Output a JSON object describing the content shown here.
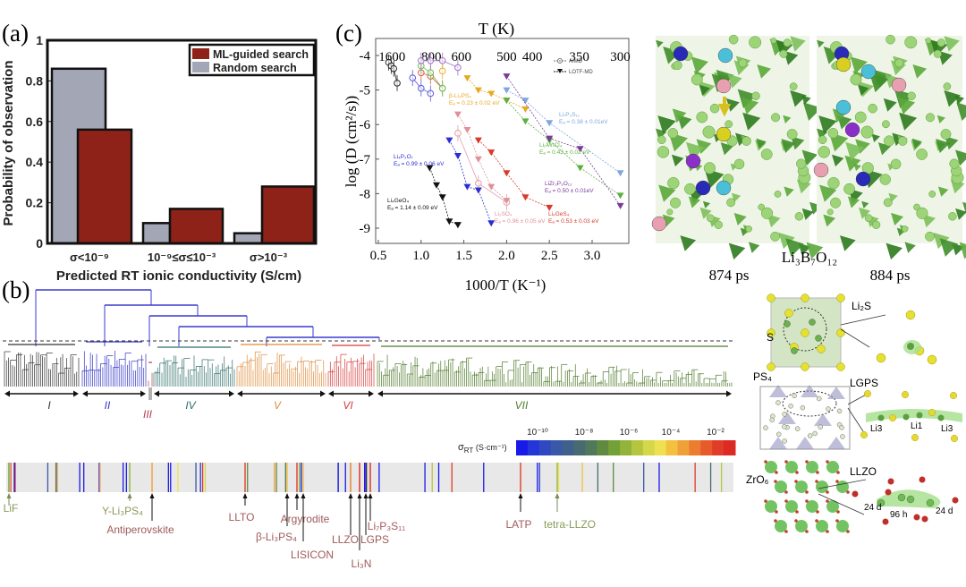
{
  "panels": {
    "a": "(a)",
    "b": "(b)",
    "c": "(c)"
  },
  "chart_data": [
    {
      "type": "bar",
      "panel": "a",
      "categories": [
        "σ<10⁻⁹",
        "10⁻⁹≤σ≤10⁻³",
        "σ>10⁻³"
      ],
      "series": [
        {
          "name": "Random search",
          "values": [
            0.86,
            0.1,
            0.05
          ],
          "color": "#a3a6b4"
        },
        {
          "name": "ML-guided search",
          "values": [
            0.56,
            0.17,
            0.28
          ],
          "color": "#8e2218"
        }
      ],
      "xlabel": "Predicted RT ionic conductivity (S/cm)",
      "ylabel": "Probability of observation",
      "ylim": [
        0,
        1
      ],
      "yticks": [
        "0",
        "0.2",
        "0.4",
        "0.6",
        "0.8",
        "1"
      ],
      "legend_position": "top-right",
      "legend": [
        "ML-guided search",
        "Random search"
      ]
    },
    {
      "type": "scatter",
      "panel": "c",
      "xlabel": "1000/T (K⁻¹)",
      "ylabel": "log (D (cm²/s))",
      "top_axis_label": "T (K)",
      "xlim": [
        0.4,
        3.45
      ],
      "ylim": [
        -9.45,
        -3.5
      ],
      "xticks": [
        "0.5",
        "1.0",
        "1.5",
        "2.0",
        "2.5",
        "3.0"
      ],
      "yticks": [
        "-4",
        "-5",
        "-6",
        "-7",
        "-8",
        "-9"
      ],
      "top_ticks": [
        {
          "label": "1600",
          "x": 0.66
        },
        {
          "label": "800",
          "x": 1.12
        },
        {
          "label": "600",
          "x": 1.47
        },
        {
          "label": "500",
          "x": 2.0
        },
        {
          "label": "400",
          "x": 2.3
        },
        {
          "label": "350",
          "x": 2.85
        },
        {
          "label": "300",
          "x": 3.33
        }
      ],
      "legend": [
        {
          "label": "AIMD",
          "marker": "circle"
        },
        {
          "label": "LOTF-MD",
          "marker": "triangle"
        }
      ],
      "legend_position": "top-right",
      "lotf_series": [
        {
          "name": "Li₄GeO₄",
          "ea": "Eₐ = 1.14 ± 0.09 eV",
          "color": "#111111",
          "x": [
            1.1,
            1.18,
            1.25,
            1.33,
            1.43
          ],
          "y": [
            -7.25,
            -7.75,
            -8.1,
            -8.8,
            -8.9
          ]
        },
        {
          "name": "Li₄P₂O₇",
          "ea": "Eₐ = 0.99 ± 0.06 eV",
          "color": "#2b2fd0",
          "x": [
            1.33,
            1.43,
            1.54,
            1.67,
            1.82
          ],
          "y": [
            -6.45,
            -6.9,
            -7.8,
            -7.9,
            -8.85
          ]
        },
        {
          "name": "Li₂SO₄",
          "ea": "Eₐ = 0.96 ± 0.05 eV",
          "color": "#e0909a",
          "x": [
            1.43,
            1.54,
            1.67,
            1.82,
            2.0
          ],
          "y": [
            -5.7,
            -6.15,
            -7.0,
            -7.8,
            -8.2
          ]
        },
        {
          "name": "Li₄GeS₄",
          "ea": "Eₐ = 0.53 ± 0.03 eV",
          "color": "#d83a2a",
          "x": [
            1.67,
            1.82,
            2.0,
            2.22,
            2.5
          ],
          "y": [
            -6.45,
            -6.8,
            -7.4,
            -8.1,
            -8.4
          ]
        },
        {
          "name": "β-Li₃PS₄",
          "ea": "Eₐ = 0.23 ± 0.02 eV",
          "color": "#e8a820",
          "x": [
            1.54,
            1.67,
            1.82,
            2.0,
            2.22
          ],
          "y": [
            -4.65,
            -5.0,
            -5.1,
            -5.3,
            -5.55
          ]
        },
        {
          "name": "Li₇P₃S₁₁",
          "ea": "Eₐ = 0.38 ± 0.01eV",
          "color": "#7ea6e0",
          "x": [
            2.0,
            2.22,
            2.5,
            3.33
          ],
          "y": [
            -5.0,
            -5.3,
            -5.95,
            -7.4
          ]
        },
        {
          "name": "Li₂MnCl₄",
          "ea": "Eₐ = 0.43 ± 0.02 eV",
          "color": "#5cb040",
          "x": [
            2.0,
            2.22,
            2.5,
            2.86,
            3.33
          ],
          "y": [
            -5.3,
            -5.9,
            -6.45,
            -7.25,
            -8.05
          ]
        },
        {
          "name": "LiZr₂P₃O₁₂",
          "ea": "Eₐ = 0.50 ± 0.01eV",
          "color": "#7a3a9a",
          "x": [
            2.0,
            2.5,
            2.86,
            3.33
          ],
          "y": [
            -4.6,
            -6.4,
            -6.7,
            -8.35
          ]
        }
      ],
      "aimd_series": [
        {
          "color": "#222222",
          "x": [
            0.62,
            0.65,
            0.68,
            0.72
          ],
          "y": [
            -4.2,
            -4.3,
            -4.38,
            -4.8
          ]
        },
        {
          "color": "#5a5ad8",
          "x": [
            0.9,
            1.0,
            1.11
          ],
          "y": [
            -4.65,
            -4.95,
            -5.1
          ]
        },
        {
          "color": "#d85a4a",
          "x": [
            1.0,
            1.11,
            1.25
          ],
          "y": [
            -4.5,
            -4.6,
            -4.95
          ]
        },
        {
          "color": "#6cc050",
          "x": [
            1.0,
            1.11,
            1.25
          ],
          "y": [
            -4.3,
            -4.5,
            -4.95
          ]
        },
        {
          "color": "#a070c8",
          "x": [
            1.0,
            1.11,
            1.25,
            1.43
          ],
          "y": [
            -4.15,
            -4.15,
            -4.15,
            -4.35
          ]
        },
        {
          "color": "#e8b030",
          "x": [
            1.25
          ],
          "y": [
            -4.45
          ]
        },
        {
          "color": "#e0a0a8",
          "x": [
            1.43,
            1.67,
            2.0
          ],
          "y": [
            -6.25,
            -7.7,
            -8.25
          ]
        }
      ]
    }
  ],
  "snapshots": {
    "compound": "Li₃B₇O₁₂",
    "times": [
      "874 ps",
      "884 ps"
    ]
  },
  "dendrogram": {
    "clusters": [
      {
        "label": "I",
        "color": "#333333"
      },
      {
        "label": "II",
        "color": "#3434c8"
      },
      {
        "label": "III",
        "color": "#b04050"
      },
      {
        "label": "IV",
        "color": "#2e6e6a"
      },
      {
        "label": "V",
        "color": "#e08a3a"
      },
      {
        "label": "VI",
        "color": "#d83a3a"
      },
      {
        "label": "VII",
        "color": "#4f7a2a"
      }
    ],
    "link_color": "#3a3ad0"
  },
  "colorbar": {
    "label": "σ",
    "label_sub": "RT",
    "label_unit": " (S·cm⁻¹)",
    "ticks": [
      "10⁻¹⁰",
      "10⁻⁸",
      "10⁻⁶",
      "10⁻⁴",
      "10⁻²"
    ],
    "colors": [
      "#1a1ae8",
      "#2436d8",
      "#3048c0",
      "#3a58a8",
      "#40608c",
      "#486a70",
      "#50785a",
      "#5f8a40",
      "#74a038",
      "#92b43a",
      "#b4c640",
      "#d4d848",
      "#eee050",
      "#f4c040",
      "#f0a038",
      "#ec7c30",
      "#e65a2c",
      "#e03c28",
      "#dc2a24"
    ]
  },
  "materials": [
    {
      "name": "LiF",
      "color": "#8a9a5a"
    },
    {
      "name": "Y-Li₃PS₄",
      "color": "#8a9a5a"
    },
    {
      "name": "Antiperovskite",
      "color": "#a05a5a"
    },
    {
      "name": "LLTO",
      "color": "#a05a5a"
    },
    {
      "name": "β-Li₃PS₄",
      "color": "#a05a5a"
    },
    {
      "name": "Argyrodite",
      "color": "#a05a5a"
    },
    {
      "name": "LISICON",
      "color": "#a05a5a"
    },
    {
      "name": "LLZO",
      "color": "#a05a5a"
    },
    {
      "name": "Li₃N",
      "color": "#a05a5a"
    },
    {
      "name": "LGPS",
      "color": "#a05a5a"
    },
    {
      "name": "Li₇P₃S₁₁",
      "color": "#a05a5a"
    },
    {
      "name": "LATP",
      "color": "#a05a5a"
    },
    {
      "name": "tetra-LLZO",
      "color": "#8a9a5a"
    }
  ],
  "structures": {
    "li2s": "Li₂S",
    "s": "S",
    "ps4": "PS₄",
    "lgps": "LGPS",
    "li3a": "Li3",
    "li1": "Li1",
    "li3b": "Li3",
    "zro6": "ZrO₆",
    "llzo": "LLZO",
    "site24a": "24 d",
    "site96": "96 h",
    "site24b": "24 d"
  }
}
